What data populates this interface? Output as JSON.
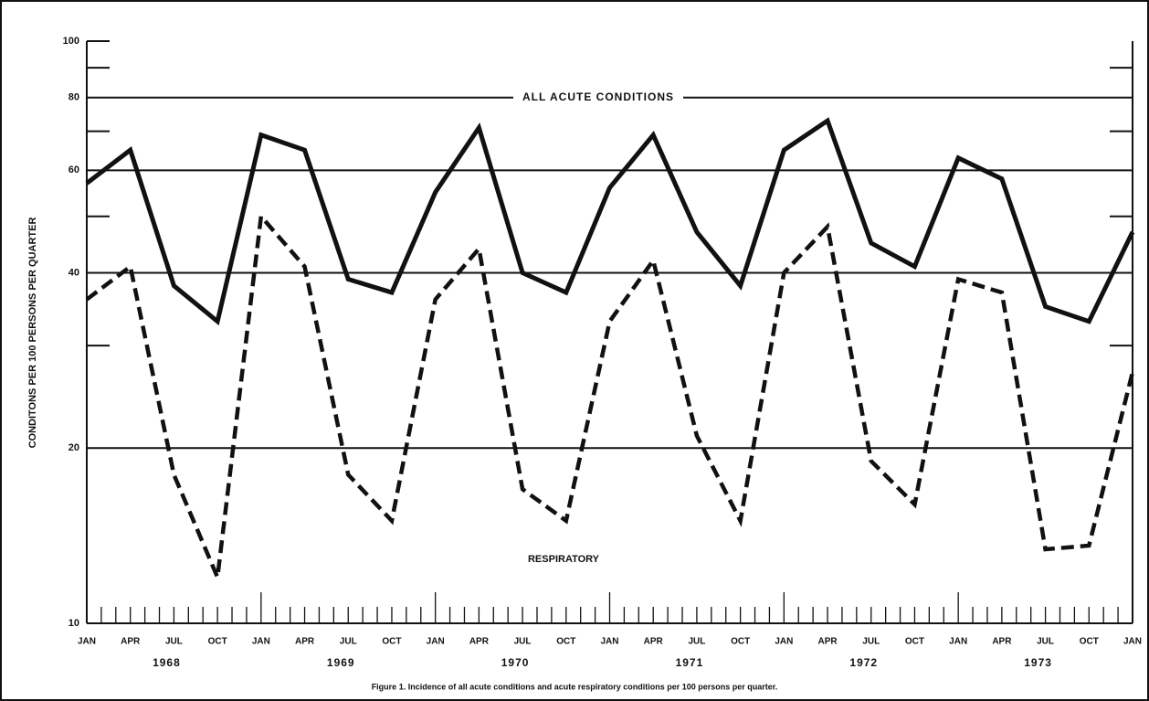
{
  "chart_data": {
    "type": "line",
    "y_label": "CONDITONS PER 100 PERSONS PER QUARTER",
    "caption": "Figure 1.  Incidence of all acute conditions and acute respiratory conditions per 100 persons per quarter.",
    "categories": [
      "JAN",
      "APR",
      "JUL",
      "OCT",
      "JAN",
      "APR",
      "JUL",
      "OCT",
      "JAN",
      "APR",
      "JUL",
      "OCT",
      "JAN",
      "APR",
      "JUL",
      "OCT",
      "JAN",
      "APR",
      "JUL",
      "OCT",
      "JAN",
      "APR",
      "JUL",
      "OCT",
      "JAN"
    ],
    "years": [
      "1968",
      "1969",
      "1970",
      "1971",
      "1972",
      "1973"
    ],
    "series": [
      {
        "name": "ALL ACUTE CONDITIONS",
        "color": "#111111",
        "style": "solid",
        "values": [
          57,
          65,
          38,
          33,
          69,
          65,
          39,
          37,
          55,
          71,
          40,
          37,
          56,
          69,
          47,
          38,
          65,
          73,
          45,
          41,
          63,
          58,
          35,
          33,
          47
        ]
      },
      {
        "name": "RESPIRATORY",
        "color": "#111111",
        "style": "dashed",
        "values": [
          36,
          41,
          18,
          12,
          50,
          41,
          18,
          15,
          36,
          44,
          17,
          15,
          33,
          42,
          21,
          15,
          40,
          48,
          19,
          16,
          39,
          37,
          13.4,
          13.6,
          27
        ]
      }
    ],
    "log_scale": true,
    "ylim": [
      10,
      100
    ],
    "yticks": [
      10,
      20,
      40,
      60,
      80,
      100
    ],
    "minor_yticks": [
      30,
      50,
      70,
      90
    ],
    "grid": true
  }
}
